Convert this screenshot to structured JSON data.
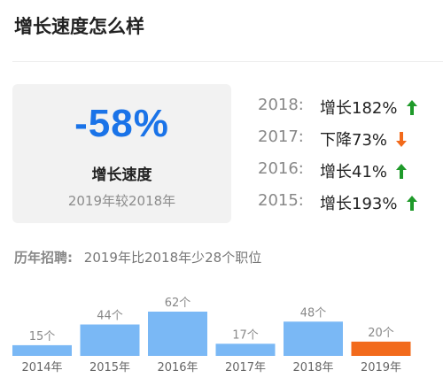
{
  "title": "增长速度怎么样",
  "summary": {
    "percent": "-58%",
    "label": "增长速度",
    "sub": "2019年较2018年"
  },
  "rates": [
    {
      "year": "2018:",
      "text": "增长182%",
      "trend": "up"
    },
    {
      "year": "2017:",
      "text": "下降73%",
      "trend": "down"
    },
    {
      "year": "2016:",
      "text": "增长41%",
      "trend": "up"
    },
    {
      "year": "2015:",
      "text": "增长193%",
      "trend": "up"
    }
  ],
  "history": {
    "label": "历年招聘:",
    "text": "2019年比2018年少28个职位"
  },
  "colors": {
    "accent": "#1a73e8",
    "up": "#1f9a2a",
    "down": "#f26a1b",
    "bar": "#7ab8f5",
    "bar_highlight": "#f26a1b"
  },
  "chart_data": {
    "type": "bar",
    "categories": [
      "2014年",
      "2015年",
      "2016年",
      "2017年",
      "2018年",
      "2019年"
    ],
    "values": [
      15,
      44,
      62,
      17,
      48,
      20
    ],
    "data_labels": [
      "15个",
      "44个",
      "62个",
      "17个",
      "48个",
      "20个"
    ],
    "highlight_index": 5,
    "ylim": [
      0,
      62
    ]
  }
}
